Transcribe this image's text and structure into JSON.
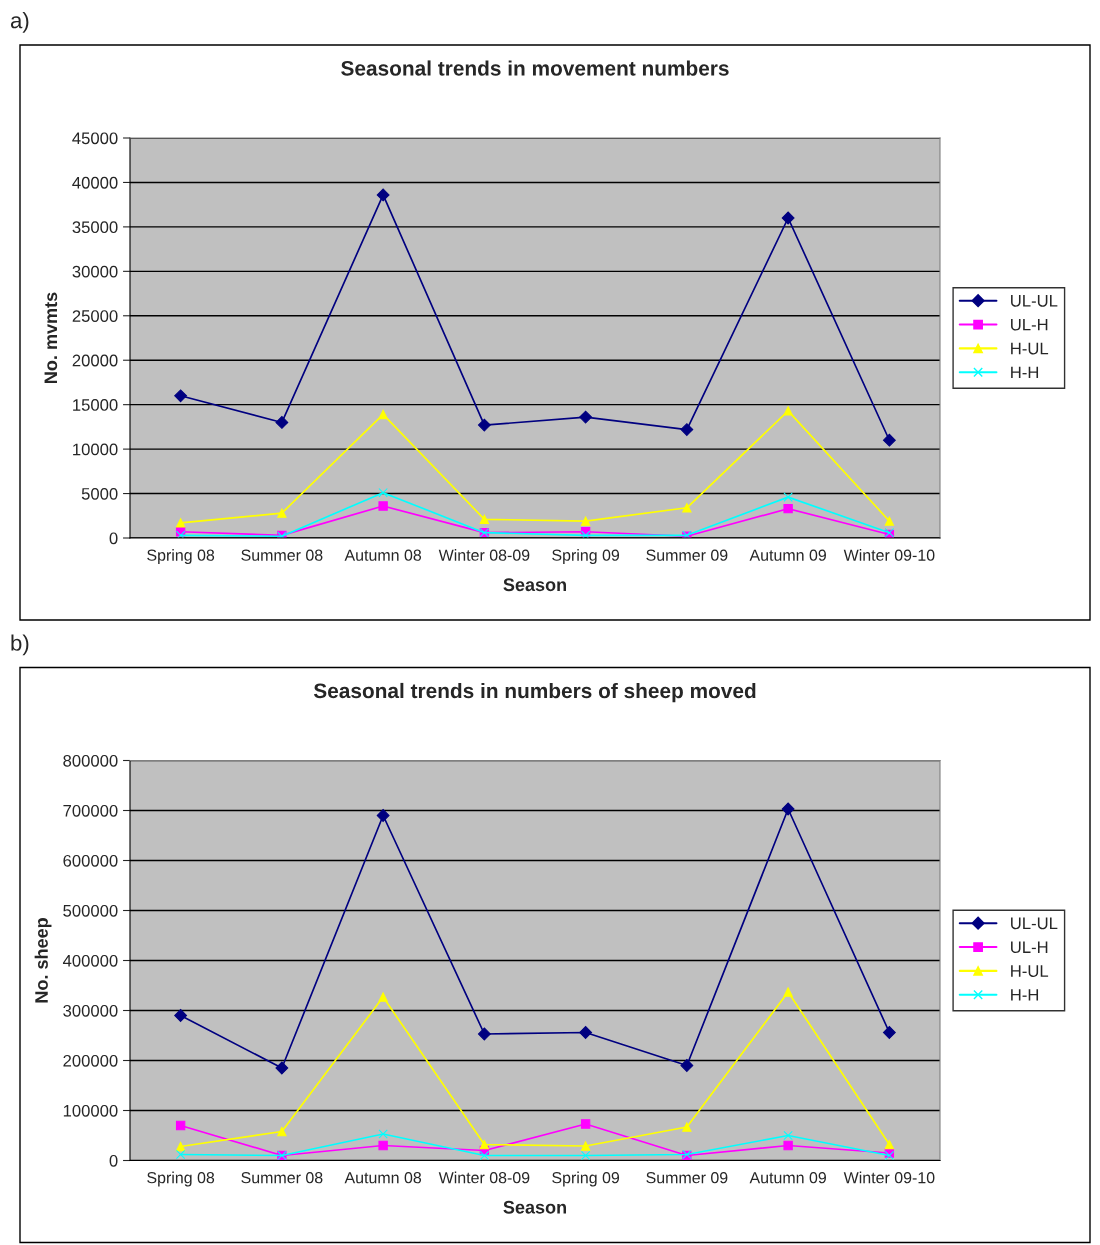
{
  "chart_data": [
    {
      "type": "line",
      "title": "Seasonal trends in movement numbers",
      "xlabel": "Season",
      "ylabel": "No. mvmts",
      "annotations": [
        "a)"
      ],
      "categories": [
        "Spring 08",
        "Summer 08",
        "Autumn 08",
        "Winter 08-09",
        "Spring 09",
        "Summer 09",
        "Autumn 09",
        "Winter 09-10"
      ],
      "series": [
        {
          "name": "UL-UL",
          "color": "#000080",
          "marker": "diamond",
          "values": [
            16000,
            13000,
            38600,
            12700,
            13600,
            12200,
            36000,
            11000
          ]
        },
        {
          "name": "UL-H",
          "color": "#ff00ff",
          "marker": "square",
          "values": [
            700,
            300,
            3600,
            600,
            700,
            200,
            3300,
            400
          ]
        },
        {
          "name": "H-UL",
          "color": "#ffff00",
          "marker": "triangle",
          "values": [
            1700,
            2800,
            13900,
            2100,
            1900,
            3400,
            14300,
            1900
          ]
        },
        {
          "name": "H-H",
          "color": "#00ffff",
          "marker": "cross",
          "values": [
            300,
            200,
            5100,
            600,
            300,
            300,
            4600,
            600
          ]
        }
      ],
      "ylim": [
        0,
        45000
      ],
      "yticks": [
        0,
        5000,
        10000,
        15000,
        20000,
        25000,
        30000,
        35000,
        40000,
        45000
      ],
      "grid": "y",
      "legend": "right"
    },
    {
      "type": "line",
      "title": "Seasonal trends in numbers of sheep moved",
      "xlabel": "Season",
      "ylabel": "No. sheep",
      "annotations": [
        "b)"
      ],
      "categories": [
        "Spring 08",
        "Summer 08",
        "Autumn 08",
        "Winter 08-09",
        "Spring 09",
        "Summer 09",
        "Autumn 09",
        "Winter 09-10"
      ],
      "series": [
        {
          "name": "UL-UL",
          "color": "#000080",
          "marker": "diamond",
          "values": [
            290000,
            185000,
            690000,
            253000,
            256000,
            190000,
            703000,
            256000
          ]
        },
        {
          "name": "UL-H",
          "color": "#ff00ff",
          "marker": "square",
          "values": [
            70000,
            10000,
            30000,
            20000,
            73000,
            10000,
            30000,
            15000
          ]
        },
        {
          "name": "H-UL",
          "color": "#ffff00",
          "marker": "triangle",
          "values": [
            28000,
            58000,
            327000,
            32000,
            29000,
            67000,
            337000,
            32000
          ]
        },
        {
          "name": "H-H",
          "color": "#00ffff",
          "marker": "cross",
          "values": [
            12000,
            10000,
            53000,
            10000,
            10000,
            12000,
            50000,
            10000
          ]
        }
      ],
      "ylim": [
        0,
        800000
      ],
      "yticks": [
        0,
        100000,
        200000,
        300000,
        400000,
        500000,
        600000,
        700000,
        800000
      ],
      "grid": "y",
      "legend": "right"
    }
  ]
}
